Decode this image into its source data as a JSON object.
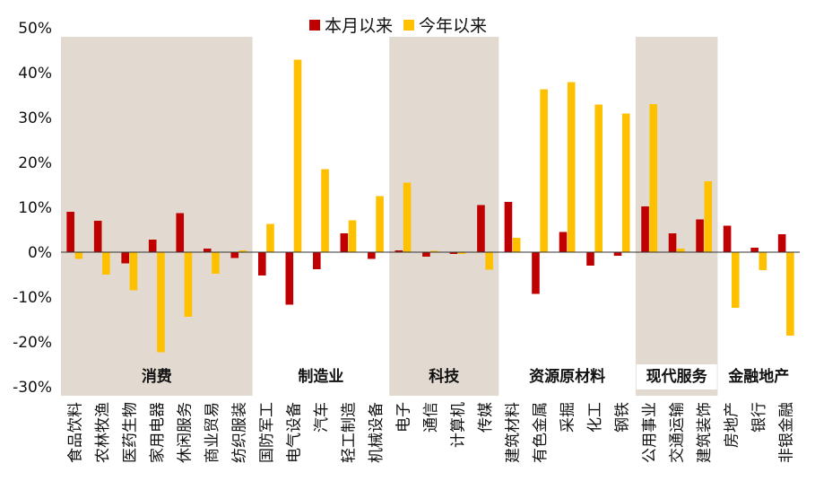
{
  "chart_data": {
    "type": "bar",
    "title": "",
    "xlabel": "",
    "ylabel": "",
    "ylim": [
      -32,
      50
    ],
    "yticks": [
      -30,
      -20,
      -10,
      0,
      10,
      20,
      30,
      40,
      50
    ],
    "ytick_labels": [
      "-30%",
      "-20%",
      "-10%",
      "0%",
      "10%",
      "20%",
      "30%",
      "40%",
      "50%"
    ],
    "legend_position": "top-center",
    "categories": [
      "食品饮料",
      "农林牧渔",
      "医药生物",
      "家用电器",
      "休闲服务",
      "商业贸易",
      "纺织服装",
      "国防军工",
      "电气设备",
      "汽车",
      "轻工制造",
      "机械设备",
      "电子",
      "通信",
      "计算机",
      "传媒",
      "建筑材料",
      "有色金属",
      "采掘",
      "化工",
      "钢铁",
      "公用事业",
      "交通运输",
      "建筑装饰",
      "房地产",
      "银行",
      "非银金融"
    ],
    "series": [
      {
        "name": "本月以来",
        "color": "#c00000",
        "values": [
          9.0,
          7.0,
          -2.5,
          2.8,
          8.7,
          0.8,
          -1.3,
          -5.2,
          -11.7,
          -3.8,
          4.2,
          -1.5,
          0.4,
          -1.0,
          -0.4,
          10.5,
          11.2,
          -9.3,
          4.5,
          -3.0,
          -0.8,
          10.2,
          4.2,
          7.3,
          5.9,
          1.0,
          4.0
        ]
      },
      {
        "name": "今年以来",
        "color": "#ffc000",
        "values": [
          -1.5,
          -5.0,
          -8.5,
          -22.3,
          -14.4,
          -4.8,
          0.4,
          6.3,
          42.9,
          18.5,
          7.1,
          12.5,
          15.5,
          0.3,
          -0.4,
          -3.9,
          3.2,
          36.3,
          37.9,
          32.9,
          30.9,
          33.0,
          0.8,
          15.8,
          -12.4,
          -4.0,
          -18.6
        ]
      }
    ],
    "groups": [
      {
        "name": "消费",
        "start": 0,
        "end": 6,
        "shaded": true
      },
      {
        "name": "制造业",
        "start": 7,
        "end": 11,
        "shaded": false
      },
      {
        "name": "科技",
        "start": 12,
        "end": 15,
        "shaded": true
      },
      {
        "name": "资源原材料",
        "start": 16,
        "end": 20,
        "shaded": false
      },
      {
        "name": "现代服务",
        "start": 21,
        "end": 23,
        "shaded": true
      },
      {
        "name": "金融地产",
        "start": 24,
        "end": 26,
        "shaded": false
      }
    ],
    "shade_color": "#e2dad1"
  }
}
